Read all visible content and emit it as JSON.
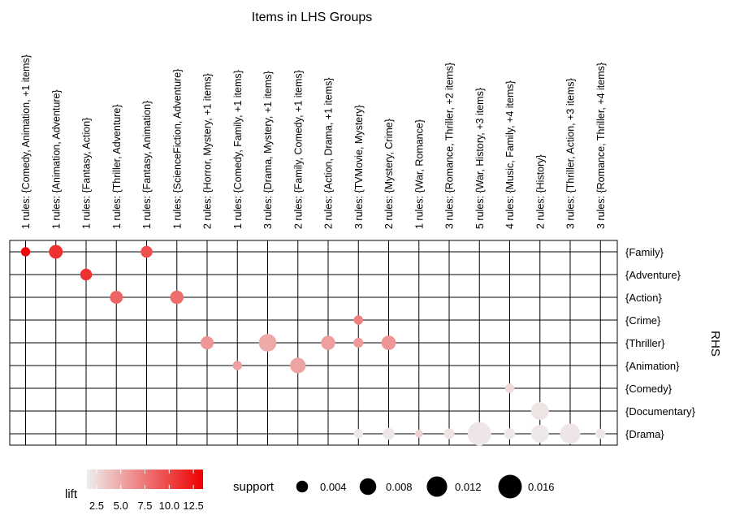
{
  "chart_data": {
    "type": "grouped-matrix",
    "title": "Items in LHS Groups",
    "ylabel": "RHS",
    "lhs_groups": [
      "1 rules: {Comedy, Animation, +1 items}",
      "1 rules: {Animation, Adventure}",
      "1 rules: {Fantasy, Action}",
      "1 rules: {Thriller, Adventure}",
      "1 rules: {Fantasy, Animation}",
      "1 rules: {ScienceFiction, Adventure}",
      "2 rules: {Horror, Mystery, +1 items}",
      "1 rules: {Comedy, Family, +1 items}",
      "3 rules: {Drama, Mystery, +1 items}",
      "2 rules: {Family, Comedy, +1 items}",
      "2 rules: {Action, Drama, +1 items}",
      "3 rules: {TVMovie, Mystery}",
      "2 rules: {Mystery, Crime}",
      "1 rules: {War, Romance}",
      "3 rules: {Romance, Thriller, +2 items}",
      "5 rules: {War, History, +3 items}",
      "4 rules: {Music, Family, +4 items}",
      "2 rules: {History}",
      "3 rules: {Thriller, Action, +3 items}",
      "3 rules: {Romance, Thriller, +4 items}"
    ],
    "rhs_items": [
      "{Family}",
      "{Adventure}",
      "{Action}",
      "{Crime}",
      "{Thriller}",
      "{Animation}",
      "{Comedy}",
      "{Documentary}",
      "{Drama}"
    ],
    "points": [
      {
        "x": 0,
        "y": "{Family}",
        "support": 0.0025,
        "lift": 13.0
      },
      {
        "x": 1,
        "y": "{Family}",
        "support": 0.0055,
        "lift": 11.0
      },
      {
        "x": 4,
        "y": "{Family}",
        "support": 0.004,
        "lift": 9.5
      },
      {
        "x": 2,
        "y": "{Adventure}",
        "support": 0.004,
        "lift": 11.0
      },
      {
        "x": 3,
        "y": "{Action}",
        "support": 0.0048,
        "lift": 8.5
      },
      {
        "x": 5,
        "y": "{Action}",
        "support": 0.0052,
        "lift": 8.0
      },
      {
        "x": 11,
        "y": "{Crime}",
        "support": 0.0025,
        "lift": 7.0
      },
      {
        "x": 6,
        "y": "{Thriller}",
        "support": 0.005,
        "lift": 6.0
      },
      {
        "x": 8,
        "y": "{Thriller}",
        "support": 0.009,
        "lift": 5.0
      },
      {
        "x": 10,
        "y": "{Thriller}",
        "support": 0.0058,
        "lift": 5.5
      },
      {
        "x": 11,
        "y": "{Thriller}",
        "support": 0.0028,
        "lift": 5.8
      },
      {
        "x": 12,
        "y": "{Thriller}",
        "support": 0.006,
        "lift": 6.0
      },
      {
        "x": 7,
        "y": "{Animation}",
        "support": 0.0025,
        "lift": 5.5
      },
      {
        "x": 9,
        "y": "{Animation}",
        "support": 0.007,
        "lift": 5.3
      },
      {
        "x": 16,
        "y": "{Comedy}",
        "support": 0.0025,
        "lift": 2.6
      },
      {
        "x": 17,
        "y": "{Documentary}",
        "support": 0.009,
        "lift": 2.0
      },
      {
        "x": 11,
        "y": "{Drama}",
        "support": 0.0025,
        "lift": 1.8
      },
      {
        "x": 12,
        "y": "{Drama}",
        "support": 0.004,
        "lift": 1.8
      },
      {
        "x": 13,
        "y": "{Drama}",
        "support": 0.0018,
        "lift": 3.0
      },
      {
        "x": 14,
        "y": "{Drama}",
        "support": 0.0032,
        "lift": 2.0
      },
      {
        "x": 15,
        "y": "{Drama}",
        "support": 0.016,
        "lift": 1.9
      },
      {
        "x": 16,
        "y": "{Drama}",
        "support": 0.0035,
        "lift": 1.8
      },
      {
        "x": 17,
        "y": "{Drama}",
        "support": 0.009,
        "lift": 1.8
      },
      {
        "x": 18,
        "y": "{Drama}",
        "support": 0.012,
        "lift": 1.9
      },
      {
        "x": 19,
        "y": "{Drama}",
        "support": 0.003,
        "lift": 1.8
      }
    ],
    "color_legend": {
      "title": "lift",
      "ticks": [
        "2.5",
        "5.0",
        "7.5",
        "10.0",
        "12.5"
      ],
      "tick_values": [
        2.5,
        5.0,
        7.5,
        10.0,
        12.5
      ],
      "range": [
        1.5,
        13.5
      ],
      "low_color": "#eeeeee",
      "high_color": "#ee0000"
    },
    "size_legend": {
      "title": "support",
      "labels": [
        "0.004",
        "0.008",
        "0.012",
        "0.016"
      ],
      "values": [
        0.004,
        0.008,
        0.012,
        0.016
      ],
      "max_support": 0.016
    },
    "legend_position": "bottom"
  }
}
